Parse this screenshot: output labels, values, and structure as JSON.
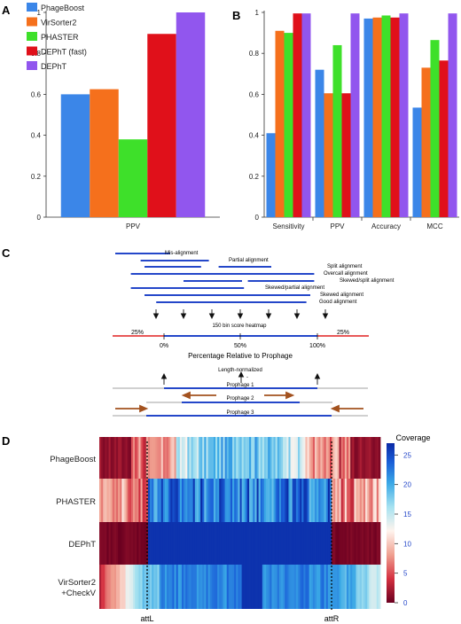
{
  "colors": {
    "PhageBoost": "#3b86e8",
    "VirSorter2": "#f5701c",
    "PHASTER": "#3ee02a",
    "DEPhT (fast)": "#e0101a",
    "DEPhT": "#9156ee",
    "segment": "#2447c9",
    "arrow": "#a3521f",
    "outer": "#e02020",
    "axis": "#333333"
  },
  "chart_data": [
    {
      "panel": "A",
      "type": "bar",
      "categories": [
        "PPV"
      ],
      "series": [
        {
          "name": "PhageBoost",
          "values": [
            0.6
          ]
        },
        {
          "name": "VirSorter2",
          "values": [
            0.625
          ]
        },
        {
          "name": "PHASTER",
          "values": [
            0.38
          ]
        },
        {
          "name": "DEPhT (fast)",
          "values": [
            0.895
          ]
        },
        {
          "name": "DEPhT",
          "values": [
            1.0
          ]
        }
      ],
      "ylim": [
        0,
        1
      ],
      "yticks": [
        "0",
        "0.2",
        "0.4",
        "0.6",
        "0.8",
        "1"
      ],
      "legend": "top-left"
    },
    {
      "panel": "B",
      "type": "bar",
      "categories": [
        "Sensitivity",
        "PPV",
        "Accuracy",
        "MCC"
      ],
      "series": [
        {
          "name": "PhageBoost",
          "values": [
            0.41,
            0.72,
            0.97,
            0.535
          ]
        },
        {
          "name": "VirSorter2",
          "values": [
            0.91,
            0.605,
            0.975,
            0.73
          ]
        },
        {
          "name": "PHASTER",
          "values": [
            0.9,
            0.84,
            0.985,
            0.865
          ]
        },
        {
          "name": "DEPhT (fast)",
          "values": [
            0.995,
            0.605,
            0.975,
            0.765
          ]
        },
        {
          "name": "DEPhT",
          "values": [
            0.995,
            0.995,
            0.995,
            0.995
          ]
        }
      ],
      "ylim": [
        0,
        1
      ],
      "yticks": [
        "0",
        "0.2",
        "0.4",
        "0.6",
        "0.8",
        "1"
      ]
    },
    {
      "panel": "D",
      "type": "heatmap",
      "rows": [
        "PhageBoost",
        "PHASTER",
        "DEPhT",
        "VirSorter2\n+CheckV"
      ],
      "colorbar": {
        "title": "Coverage",
        "range": [
          0,
          27
        ],
        "ticks": [
          "0",
          "5",
          "10",
          "15",
          "20",
          "25"
        ]
      },
      "markers": [
        "attL",
        "attR"
      ],
      "regions": [
        {
          "row": "PhageBoost",
          "outer": [
            0,
            2
          ],
          "inner": [
            8,
            17
          ]
        },
        {
          "row": "PHASTER",
          "outer": [
            3,
            12
          ],
          "inner": [
            17,
            27
          ]
        },
        {
          "row": "DEPhT",
          "outer": [
            0,
            1
          ],
          "inner": [
            26,
            27
          ]
        },
        {
          "row": "VirSorter2\n+CheckV",
          "outer": [
            3,
            20
          ],
          "inner": [
            16,
            27
          ]
        }
      ]
    }
  ],
  "panels": {
    "a": {
      "letter": "A"
    },
    "b": {
      "letter": "B"
    },
    "c": {
      "letter": "C"
    },
    "d": {
      "letter": "D"
    }
  },
  "diagram": {
    "alignments": [
      {
        "label": "Mis-alignment",
        "x1": 0,
        "x2": 0.28
      },
      {
        "label": "Partial alignment",
        "x1": 0.13,
        "x2": 0.48
      },
      {
        "label": "Split alignment",
        "x1": 0.15,
        "x2": 0.44
      },
      {
        "label": "Split alignment",
        "x1": 0.53,
        "x2": 0.8
      },
      {
        "label": "Overcall alignment",
        "x1": 0.08,
        "x2": 1.02
      },
      {
        "label": "Skewed/split alignment",
        "x1": 0.35,
        "x2": 0.65
      },
      {
        "label": "Skewed/split alignment",
        "x1": 0.68,
        "x2": 1.02
      },
      {
        "label": "Skewed/partial alignment",
        "x1": 0.08,
        "x2": 0.66
      },
      {
        "label": "Skewed alignment",
        "x1": 0.15,
        "x2": 1.0
      },
      {
        "label": "Good alignment",
        "x1": 0.21,
        "x2": 0.98
      }
    ],
    "labels": [
      "Mis-alignment",
      "Partial alignment",
      "Split alignment",
      "Overcall alignment",
      "Skewed/split alignment",
      "Skewed/partial alignment",
      "Skewed alignment",
      "Good alignment"
    ],
    "heatmap_label": "150 bin score heatmap",
    "left_pct": "25%",
    "right_pct": "25%",
    "ticks": [
      "0%",
      "50%",
      "100%"
    ],
    "axis_title": "Percentage Relative to Prophage",
    "norm_label": "Length-normalized",
    "norm_dash": "-",
    "prophages": [
      "Prophage 1",
      "Prophage 2",
      "Prophage 3"
    ]
  }
}
